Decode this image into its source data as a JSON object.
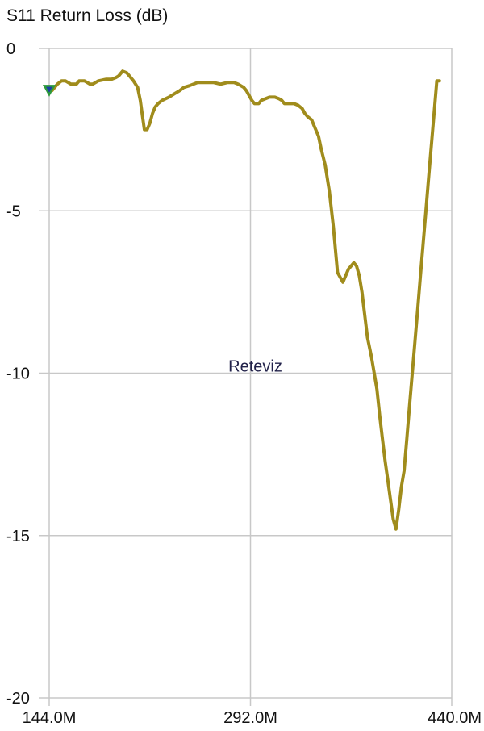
{
  "chart_data": {
    "type": "line",
    "title": "S11 Return Loss (dB)",
    "xlabel": "",
    "ylabel": "",
    "xlim": [
      144.0,
      440.0
    ],
    "ylim": [
      -20,
      0
    ],
    "x_ticks": [
      144.0,
      292.0,
      440.0
    ],
    "x_tick_labels": [
      "144.0M",
      "292.0M",
      "440.0M"
    ],
    "y_ticks": [
      0,
      -5,
      -10,
      -15,
      -20
    ],
    "y_tick_labels": [
      "0",
      "-5",
      "-10",
      "-15",
      "-20"
    ],
    "grid": true,
    "annotation": "Reteviz",
    "series_color": "#a08c1c",
    "marker_color": "#2d9a3c",
    "series": [
      {
        "x": [
          144,
          146,
          150,
          153,
          156,
          160,
          164,
          166,
          170,
          174,
          176,
          180,
          186,
          190,
          193,
          195,
          197,
          198,
          201,
          203,
          206,
          209,
          211,
          213,
          214,
          216,
          218,
          220,
          222,
          224,
          227,
          232,
          236,
          240,
          243,
          247,
          250,
          253,
          256,
          260,
          265,
          270,
          275,
          280,
          283,
          285,
          287,
          289,
          291,
          293,
          295,
          298,
          300,
          303,
          306,
          310,
          313,
          315,
          317,
          320,
          324,
          327,
          330,
          332,
          334,
          337,
          339,
          342,
          344,
          347,
          350,
          353,
          356,
          360,
          364,
          368,
          370,
          372,
          374,
          376,
          378,
          381,
          383,
          385,
          387,
          389,
          391,
          393,
          395,
          397,
          399,
          401,
          403,
          405,
          407,
          409,
          411,
          413,
          415,
          417,
          419,
          421,
          423,
          425,
          427,
          429,
          431,
          433,
          434,
          435,
          436,
          437,
          438,
          439,
          440
        ],
        "y": [
          -1.3,
          -1.3,
          -1.1,
          -1.0,
          -1.0,
          -1.1,
          -1.1,
          -1.0,
          -1.0,
          -1.1,
          -1.1,
          -1.0,
          -0.95,
          -0.95,
          -0.9,
          -0.85,
          -0.75,
          -0.7,
          -0.75,
          -0.85,
          -1.0,
          -1.2,
          -1.6,
          -2.2,
          -2.5,
          -2.5,
          -2.3,
          -2.0,
          -1.8,
          -1.7,
          -1.6,
          -1.5,
          -1.4,
          -1.3,
          -1.2,
          -1.15,
          -1.1,
          -1.05,
          -1.05,
          -1.05,
          -1.05,
          -1.1,
          -1.05,
          -1.05,
          -1.1,
          -1.15,
          -1.2,
          -1.3,
          -1.45,
          -1.6,
          -1.7,
          -1.7,
          -1.6,
          -1.55,
          -1.5,
          -1.5,
          -1.55,
          -1.6,
          -1.7,
          -1.7,
          -1.7,
          -1.75,
          -1.85,
          -2.0,
          -2.1,
          -2.2,
          -2.4,
          -2.7,
          -3.1,
          -3.6,
          -4.4,
          -5.5,
          -6.9,
          -7.2,
          -6.8,
          -6.6,
          -6.7,
          -7.0,
          -7.5,
          -8.2,
          -8.9,
          -9.5,
          -10.0,
          -10.5,
          -11.3,
          -12.0,
          -12.7,
          -13.3,
          -13.9,
          -14.5,
          -14.8,
          -14.2,
          -13.5,
          -13.0,
          -12.0,
          -11.0,
          -10.0,
          -9.0,
          -8.0,
          -7.0,
          -6.0,
          -5.0,
          -4.0,
          -3.0,
          -2.0,
          -1.0,
          -1.0,
          -1.0,
          -1.0,
          -1.0,
          -1.0,
          -1.0,
          -1.0,
          -1.0,
          -1.0
        ]
      }
    ]
  }
}
